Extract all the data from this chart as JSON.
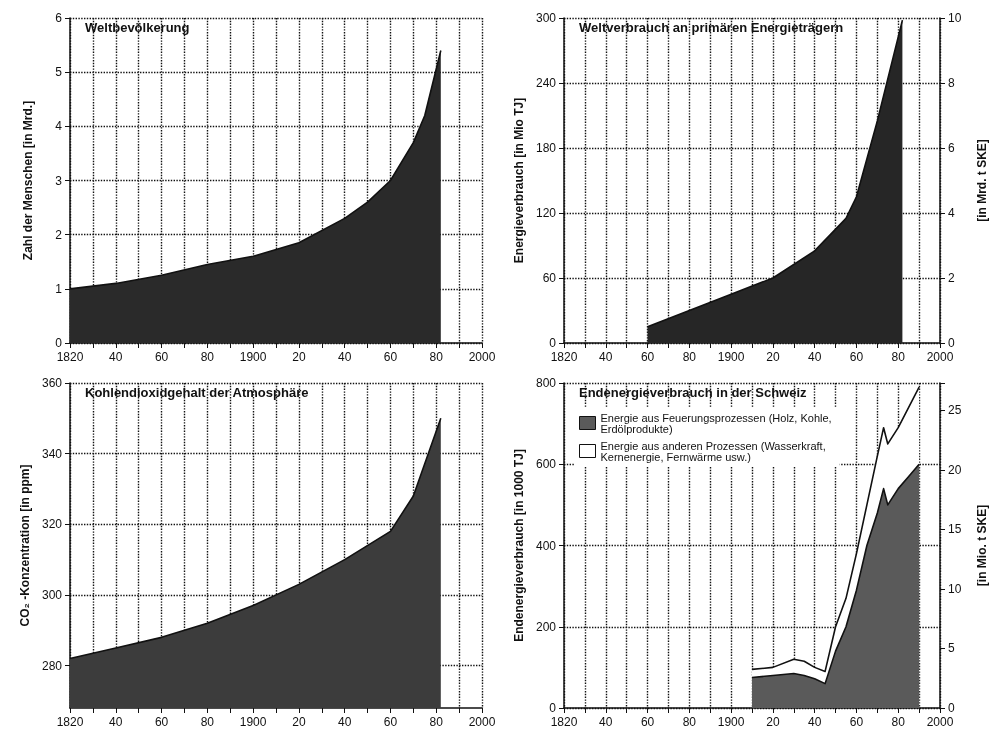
{
  "chart_data": [
    {
      "type": "area",
      "title": "Weltbevölkerung",
      "ylabel": "Zahl der Menschen [in Mrd.]",
      "x": [
        1820,
        1840,
        1860,
        1880,
        1900,
        1920,
        1940,
        1950,
        1960,
        1970,
        1975,
        1982
      ],
      "series": [
        {
          "color": "#2a2a2a",
          "values": [
            1.0,
            1.1,
            1.25,
            1.45,
            1.6,
            1.85,
            2.3,
            2.6,
            3.0,
            3.7,
            4.2,
            5.4
          ]
        }
      ],
      "xlim": [
        1820,
        2000
      ],
      "xticks": [
        1820,
        {
          "value": 1830,
          "label": null
        },
        {
          "value": 1840,
          "label": "40"
        },
        {
          "value": 1850,
          "label": null
        },
        {
          "value": 1860,
          "label": "60"
        },
        {
          "value": 1870,
          "label": null
        },
        {
          "value": 1880,
          "label": "80"
        },
        {
          "value": 1890,
          "label": null
        },
        1900,
        {
          "value": 1910,
          "label": null
        },
        {
          "value": 1920,
          "label": "20"
        },
        {
          "value": 1930,
          "label": null
        },
        {
          "value": 1940,
          "label": "40"
        },
        {
          "value": 1950,
          "label": null
        },
        {
          "value": 1960,
          "label": "60"
        },
        {
          "value": 1970,
          "label": null
        },
        {
          "value": 1980,
          "label": "80"
        },
        {
          "value": 1990,
          "label": null
        },
        2000
      ],
      "ylim": [
        0,
        6
      ],
      "yticks": [
        0,
        1,
        2,
        3,
        4,
        5,
        6
      ],
      "grid": true
    },
    {
      "type": "area",
      "title": "Weltverbrauch an primären Energieträgern",
      "ylabel": "Energieverbrauch [in Mio TJ]",
      "y2label": "[in Mrd. t SKE]",
      "x": [
        1860,
        1880,
        1900,
        1920,
        1940,
        1955,
        1960,
        1970,
        1982
      ],
      "series": [
        {
          "color": "#262626",
          "values": [
            15,
            30,
            45,
            60,
            85,
            115,
            135,
            205,
            298
          ]
        }
      ],
      "xlim": [
        1820,
        2000
      ],
      "xticks": [
        1820,
        {
          "value": 1830,
          "label": null
        },
        {
          "value": 1840,
          "label": "40"
        },
        {
          "value": 1850,
          "label": null
        },
        {
          "value": 1860,
          "label": "60"
        },
        {
          "value": 1870,
          "label": null
        },
        {
          "value": 1880,
          "label": "80"
        },
        {
          "value": 1890,
          "label": null
        },
        1900,
        {
          "value": 1910,
          "label": null
        },
        {
          "value": 1920,
          "label": "20"
        },
        {
          "value": 1930,
          "label": null
        },
        {
          "value": 1940,
          "label": "40"
        },
        {
          "value": 1950,
          "label": null
        },
        {
          "value": 1960,
          "label": "60"
        },
        {
          "value": 1970,
          "label": null
        },
        {
          "value": 1980,
          "label": "80"
        },
        {
          "value": 1990,
          "label": null
        },
        2000
      ],
      "ylim": [
        0,
        300
      ],
      "yticks": [
        0,
        60,
        120,
        180,
        240,
        300
      ],
      "y2lim": [
        0,
        10
      ],
      "y2ticks": [
        0,
        2,
        4,
        6,
        8,
        10
      ],
      "grid": true
    },
    {
      "type": "area",
      "title": "Kohlendioxidgehalt der Atmosphäre",
      "ylabel": "CO₂ -Konzentration [in ppm]",
      "x": [
        1820,
        1840,
        1860,
        1880,
        1900,
        1920,
        1940,
        1960,
        1970,
        1982
      ],
      "series": [
        {
          "color": "#3c3c3c",
          "values": [
            282,
            285,
            288,
            292,
            297,
            303,
            310,
            318,
            328,
            350
          ]
        }
      ],
      "xlim": [
        1820,
        2000
      ],
      "xticks": [
        1820,
        {
          "value": 1830,
          "label": null
        },
        {
          "value": 1840,
          "label": "40"
        },
        {
          "value": 1850,
          "label": null
        },
        {
          "value": 1860,
          "label": "60"
        },
        {
          "value": 1870,
          "label": null
        },
        {
          "value": 1880,
          "label": "80"
        },
        {
          "value": 1890,
          "label": null
        },
        1900,
        {
          "value": 1910,
          "label": null
        },
        {
          "value": 1920,
          "label": "20"
        },
        {
          "value": 1930,
          "label": null
        },
        {
          "value": 1940,
          "label": "40"
        },
        {
          "value": 1950,
          "label": null
        },
        {
          "value": 1960,
          "label": "60"
        },
        {
          "value": 1970,
          "label": null
        },
        {
          "value": 1980,
          "label": "80"
        },
        {
          "value": 1990,
          "label": null
        },
        2000
      ],
      "ylim": [
        268,
        360
      ],
      "yticks": [
        280,
        300,
        320,
        340,
        360
      ],
      "grid": true
    },
    {
      "type": "area",
      "title": "Endenergieverbrauch in der Schweiz",
      "ylabel": "Endenergieverbrauch [in 1000 TJ]",
      "y2label": "[in Mio. t SKE]",
      "stacked": true,
      "legend": "top left",
      "x": [
        1910,
        1920,
        1930,
        1935,
        1940,
        1945,
        1950,
        1955,
        1960,
        1965,
        1970,
        1973,
        1975,
        1980,
        1985,
        1990
      ],
      "series": [
        {
          "name": "Energie aus Feuerungsprozessen (Holz, Kohle, Erdölprodukte)",
          "color": "#5a5a5a",
          "values": [
            75,
            80,
            85,
            80,
            72,
            60,
            140,
            200,
            290,
            400,
            480,
            540,
            500,
            540,
            570,
            600
          ]
        },
        {
          "name": "Energie aus anderen Prozessen (Wasserkraft, Kernenergie, Fernwärme usw.)",
          "color": "#ffffff",
          "values": [
            20,
            20,
            35,
            35,
            28,
            30,
            60,
            70,
            90,
            100,
            140,
            150,
            150,
            150,
            170,
            190
          ]
        }
      ],
      "xlim": [
        1820,
        2000
      ],
      "xticks": [
        1820,
        {
          "value": 1830,
          "label": null
        },
        {
          "value": 1840,
          "label": "40"
        },
        {
          "value": 1850,
          "label": null
        },
        {
          "value": 1860,
          "label": "60"
        },
        {
          "value": 1870,
          "label": null
        },
        {
          "value": 1880,
          "label": "80"
        },
        {
          "value": 1890,
          "label": null
        },
        1900,
        {
          "value": 1910,
          "label": null
        },
        {
          "value": 1920,
          "label": "20"
        },
        {
          "value": 1930,
          "label": null
        },
        {
          "value": 1940,
          "label": "40"
        },
        {
          "value": 1950,
          "label": null
        },
        {
          "value": 1960,
          "label": "60"
        },
        {
          "value": 1970,
          "label": null
        },
        {
          "value": 1980,
          "label": "80"
        },
        {
          "value": 1990,
          "label": null
        },
        2000
      ],
      "ylim": [
        0,
        800
      ],
      "yticks": [
        0,
        200,
        400,
        600,
        800
      ],
      "y2lim": [
        0,
        27.3
      ],
      "y2ticks": [
        0,
        5,
        10,
        15,
        20,
        25
      ],
      "grid": true
    }
  ]
}
